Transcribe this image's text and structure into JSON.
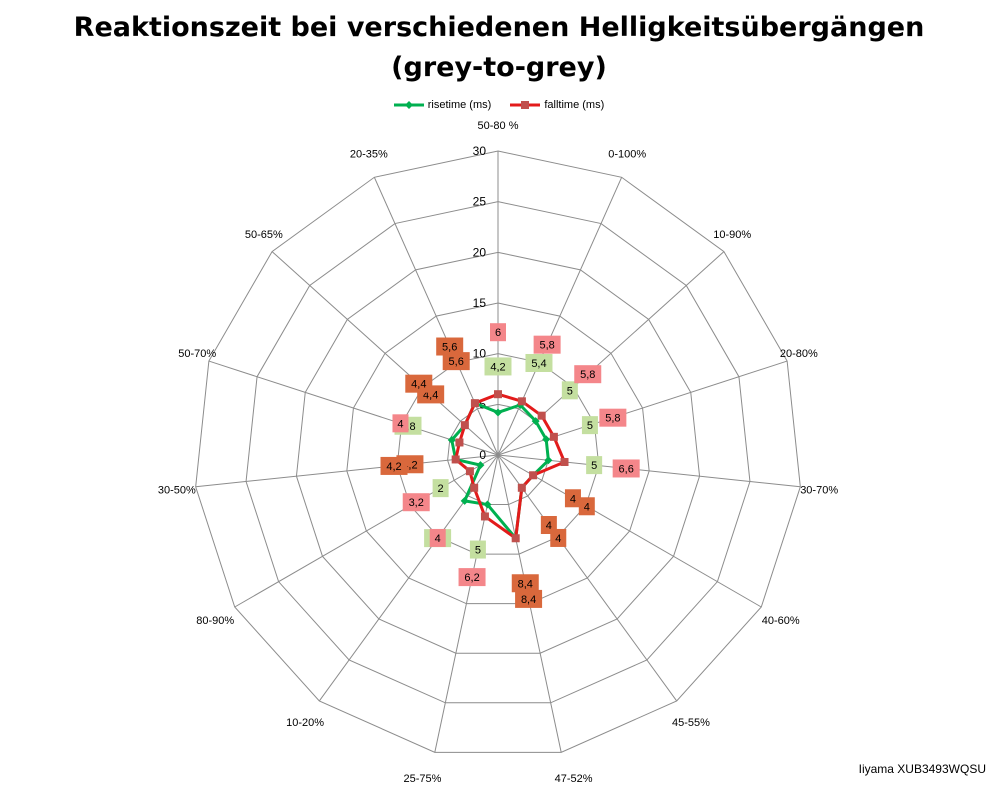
{
  "chart_data": {
    "type": "radar",
    "title_line1": "Reaktionszeit bei verschiedenen Helligkeitsübergängen",
    "title_line2": "(grey-to-grey)",
    "categories": [
      "50-80 %",
      "0-100%",
      "10-90%",
      "20-80%",
      "30-70%",
      "40-60%",
      "45-55%",
      "47-52%",
      "25-75%",
      "10-20%",
      "80-90%",
      "30-50%",
      "50-70%",
      "50-65%",
      "20-35%"
    ],
    "rmax": 30,
    "ticks": [
      0,
      5,
      10,
      15,
      20,
      25,
      30
    ],
    "series": [
      {
        "name": "risetime (ms)",
        "color": "#00b050",
        "label_bg": "#c4dfa0",
        "values": [
          4.2,
          5.4,
          5,
          5,
          5,
          4,
          4,
          8.4,
          5,
          5.6,
          2,
          4.2,
          4.8,
          4.4,
          5.6
        ]
      },
      {
        "name": "falltime (ms)",
        "color": "#e31b1b",
        "label_bg": "#f4868a",
        "values": [
          6,
          5.8,
          5.8,
          5.8,
          6.6,
          4,
          4,
          8.4,
          6.2,
          4,
          3.2,
          4.2,
          4,
          4.4,
          5.6
        ]
      }
    ],
    "label_text": {
      "risetime (ms)": [
        "4,2",
        "5,4",
        "5",
        "5",
        "5",
        "4",
        "4",
        "8,4",
        "5",
        "5,6",
        "2",
        "4,2",
        "4,8",
        "4,4",
        "5,6"
      ],
      "falltime (ms)": [
        "6",
        "5,8",
        "5,8",
        "5,8",
        "6,6",
        "4",
        "4",
        "8,4",
        "6,2",
        "4",
        "3,2",
        "4,2",
        "4",
        "4,4",
        "5,6"
      ]
    },
    "legend_position": "top",
    "grid": true
  },
  "watermark": "Iiyama XUB3493WQSU"
}
